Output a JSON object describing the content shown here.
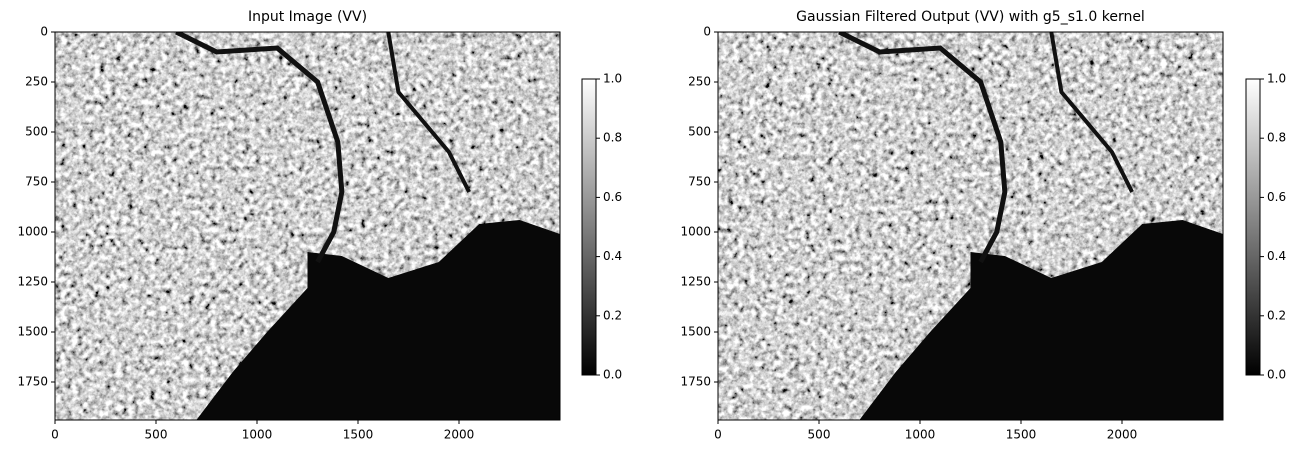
{
  "chart_data": [
    {
      "type": "image",
      "title": "Input Image (VV)",
      "xlim": [
        0,
        2500
      ],
      "ylim": [
        1940,
        0
      ],
      "xticks": [
        0,
        500,
        1000,
        1500,
        2000
      ],
      "yticks": [
        0,
        250,
        500,
        750,
        1000,
        1250,
        1500,
        1750
      ],
      "colormap": "gray",
      "colorbar": {
        "lim": [
          0,
          1
        ],
        "ticks": [
          {
            "value": 0,
            "label": "0.0"
          },
          {
            "value": 0.2,
            "label": "0.2"
          },
          {
            "value": 0.4,
            "label": "0.4"
          },
          {
            "value": 0.6,
            "label": "0.6"
          },
          {
            "value": 0.8,
            "label": "0.8"
          },
          {
            "value": 1,
            "label": "1.0"
          }
        ]
      }
    },
    {
      "type": "image",
      "title": "Gaussian Filtered Output (VV) with g5_s1.0 kernel",
      "xlim": [
        0,
        2500
      ],
      "ylim": [
        1940,
        0
      ],
      "xticks": [
        0,
        500,
        1000,
        1500,
        2000
      ],
      "yticks": [
        0,
        250,
        500,
        750,
        1000,
        1250,
        1500,
        1750
      ],
      "colormap": "gray",
      "colorbar": {
        "lim": [
          0,
          1
        ],
        "ticks": [
          {
            "value": 0,
            "label": "0.0"
          },
          {
            "value": 0.2,
            "label": "0.2"
          },
          {
            "value": 0.4,
            "label": "0.4"
          },
          {
            "value": 0.6,
            "label": "0.6"
          },
          {
            "value": 0.8,
            "label": "0.8"
          },
          {
            "value": 1,
            "label": "1.0"
          }
        ]
      }
    }
  ]
}
